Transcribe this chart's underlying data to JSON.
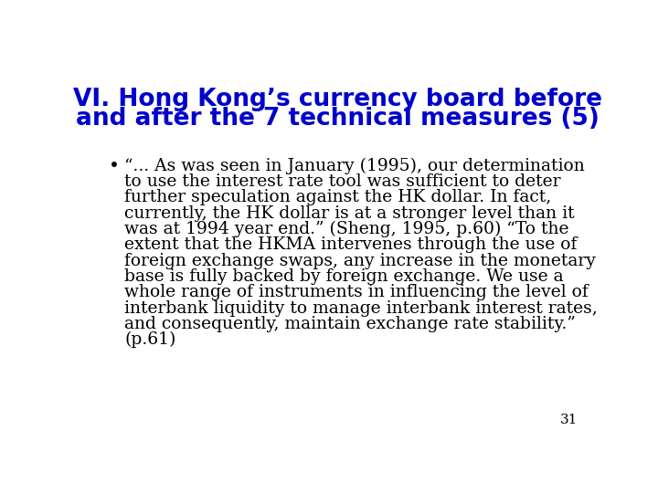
{
  "title_line1": "VI. Hong Kong’s currency board before",
  "title_line2": "and after the 7 technical measures (5)",
  "title_color": "#0000CC",
  "title_fontsize": 19,
  "body_lines": [
    "“... As was seen in January (1995), our determination",
    "to use the interest rate tool was sufficient to deter",
    "further speculation against the HK dollar. In fact,",
    "currently, the HK dollar is at a stronger level than it",
    "was at 1994 year end.” (Sheng, 1995, p.60) “To the",
    "extent that the HKMA intervenes through the use of",
    "foreign exchange swaps, any increase in the monetary",
    "base is fully backed by foreign exchange. We use a",
    "whole range of instruments in influencing the level of",
    "interbank liquidity to manage interbank interest rates,",
    "and consequently, maintain exchange rate stability.”",
    "(p.61)"
  ],
  "bullet": "•",
  "body_fontsize": 13.5,
  "body_color": "#000000",
  "title_font": "DejaVu Sans",
  "body_font": "DejaVu Serif",
  "page_number": "31",
  "background_color": "#FFFFFF"
}
